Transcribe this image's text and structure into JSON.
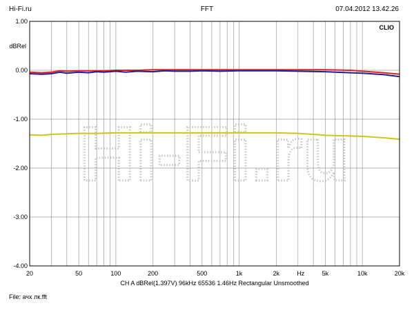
{
  "header": {
    "left": "Hi-Fi.ru",
    "center": "FFT",
    "right": "07.04.2012 13.42.26"
  },
  "footer": {
    "file": "File: ачх лк.fft"
  },
  "watermark": {
    "text": "Hi-Fi.ru",
    "color": "#c0c0c0"
  },
  "chart_data": {
    "type": "line",
    "title": "",
    "brand": "CLIO",
    "ylabel": "dBRel",
    "xunit": "Hz",
    "settings_line": "CH A   dBRel(1.397V)   96kHz   65536   1.46Hz   Rectangular   Unsmoothed",
    "x_scale": "log",
    "xlim": [
      20,
      20000
    ],
    "ylim": [
      -4.0,
      1.0
    ],
    "grid": true,
    "y_ticks": [
      {
        "value": 1.0,
        "label": "1.00"
      },
      {
        "value": 0.0,
        "label": "0.00"
      },
      {
        "value": -1.0,
        "label": "-1.00"
      },
      {
        "value": -2.0,
        "label": "-2.00"
      },
      {
        "value": -3.0,
        "label": "-3.00"
      },
      {
        "value": -4.0,
        "label": "-4.00"
      }
    ],
    "x_ticks": [
      {
        "value": 20,
        "label": "20"
      },
      {
        "value": 50,
        "label": "50"
      },
      {
        "value": 100,
        "label": "100"
      },
      {
        "value": 200,
        "label": "200"
      },
      {
        "value": 500,
        "label": "500"
      },
      {
        "value": 1000,
        "label": "1k"
      },
      {
        "value": 2000,
        "label": "2k"
      },
      {
        "value": 5000,
        "label": "5k"
      },
      {
        "value": 10000,
        "label": "10k"
      },
      {
        "value": 20000,
        "label": "20k"
      }
    ],
    "x_grid": [
      20,
      30,
      40,
      50,
      60,
      70,
      80,
      90,
      100,
      200,
      300,
      400,
      500,
      600,
      700,
      800,
      900,
      1000,
      2000,
      3000,
      4000,
      5000,
      6000,
      7000,
      8000,
      9000,
      10000,
      20000
    ],
    "series": [
      {
        "color": "#e02020",
        "points": [
          [
            20,
            -0.04
          ],
          [
            25,
            -0.05
          ],
          [
            30,
            -0.04
          ],
          [
            35,
            -0.01
          ],
          [
            40,
            -0.02
          ],
          [
            50,
            -0.01
          ],
          [
            60,
            -0.01
          ],
          [
            80,
            -0.01
          ],
          [
            100,
            0.0
          ],
          [
            150,
            0.0
          ],
          [
            200,
            0.01
          ],
          [
            300,
            0.01
          ],
          [
            500,
            0.01
          ],
          [
            1000,
            0.01
          ],
          [
            2000,
            0.01
          ],
          [
            5000,
            0.01
          ],
          [
            8000,
            0.0
          ],
          [
            10000,
            -0.02
          ],
          [
            15000,
            -0.05
          ],
          [
            20000,
            -0.08
          ]
        ]
      },
      {
        "color": "#1c1c9c",
        "points": [
          [
            20,
            -0.07
          ],
          [
            25,
            -0.08
          ],
          [
            30,
            -0.07
          ],
          [
            35,
            -0.04
          ],
          [
            40,
            -0.06
          ],
          [
            50,
            -0.04
          ],
          [
            60,
            -0.05
          ],
          [
            70,
            -0.03
          ],
          [
            80,
            -0.04
          ],
          [
            100,
            -0.02
          ],
          [
            120,
            -0.04
          ],
          [
            150,
            -0.02
          ],
          [
            200,
            -0.03
          ],
          [
            250,
            -0.01
          ],
          [
            300,
            -0.02
          ],
          [
            400,
            -0.02
          ],
          [
            500,
            -0.01
          ],
          [
            700,
            -0.02
          ],
          [
            1000,
            -0.01
          ],
          [
            2000,
            -0.01
          ],
          [
            3000,
            -0.02
          ],
          [
            5000,
            -0.03
          ],
          [
            8000,
            -0.05
          ],
          [
            10000,
            -0.06
          ],
          [
            15000,
            -0.09
          ],
          [
            20000,
            -0.13
          ]
        ]
      },
      {
        "color": "#c8c81c",
        "points": [
          [
            20,
            -1.32
          ],
          [
            25,
            -1.33
          ],
          [
            30,
            -1.31
          ],
          [
            40,
            -1.3
          ],
          [
            50,
            -1.29
          ],
          [
            70,
            -1.29
          ],
          [
            100,
            -1.28
          ],
          [
            200,
            -1.28
          ],
          [
            500,
            -1.28
          ],
          [
            1000,
            -1.28
          ],
          [
            2000,
            -1.28
          ],
          [
            3000,
            -1.29
          ],
          [
            4000,
            -1.31
          ],
          [
            5000,
            -1.33
          ],
          [
            7000,
            -1.34
          ],
          [
            10000,
            -1.35
          ],
          [
            15000,
            -1.38
          ],
          [
            20000,
            -1.41
          ]
        ]
      }
    ]
  }
}
